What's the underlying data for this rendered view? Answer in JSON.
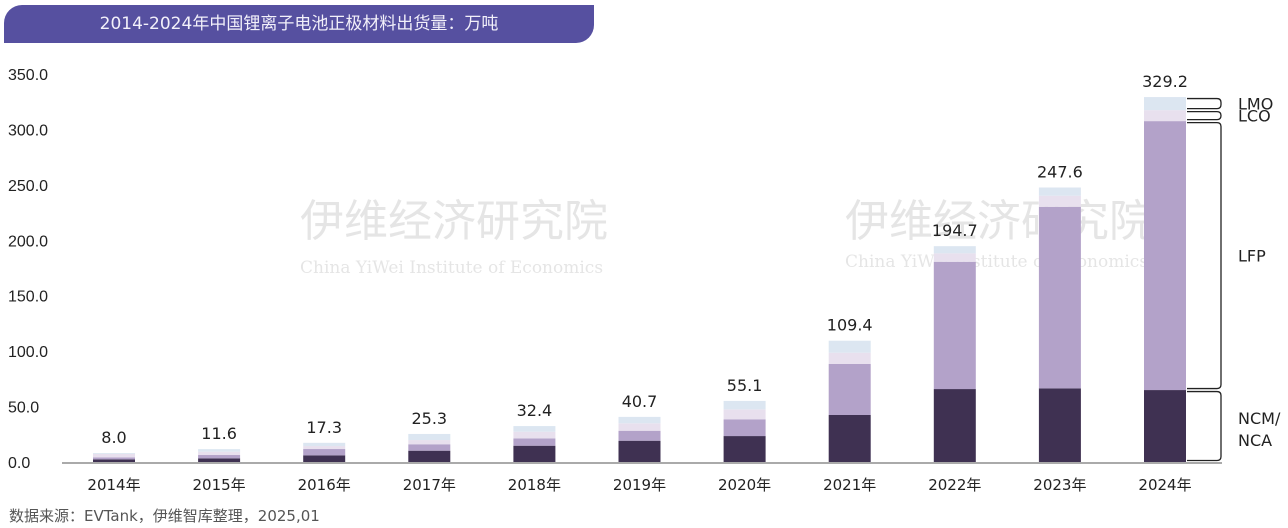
{
  "title": "2014-2024年中国锂离子电池正极材料出货量：万吨",
  "source": "数据来源：EVTank，伊维智库整理，2025,01",
  "watermark": {
    "cn": "伊维经济研究院",
    "en": "China YiWei Institute of Economics",
    "brand": "伊维智库"
  },
  "chart_data": {
    "type": "bar",
    "stacked": true,
    "title": "2014-2024年中国锂离子电池正极材料出货量：万吨",
    "categories": [
      "2014年",
      "2015年",
      "2016年",
      "2017年",
      "2018年",
      "2019年",
      "2020年",
      "2021年",
      "2022年",
      "2023年",
      "2024年"
    ],
    "totals": [
      8.0,
      11.6,
      17.3,
      25.3,
      32.4,
      40.7,
      55.1,
      109.4,
      194.7,
      247.6,
      329.2
    ],
    "total_labels": [
      "8.0",
      "11.6",
      "17.3",
      "25.3",
      "32.4",
      "40.7",
      "55.1",
      "109.4",
      "194.7",
      "247.6",
      "329.2"
    ],
    "series": [
      {
        "name": "NCM/NCA",
        "color": "#3f3152",
        "values": [
          2.4,
          3.3,
          6.0,
          10.2,
          14.7,
          19.2,
          23.4,
          42.4,
          65.8,
          66.4,
          64.9
        ]
      },
      {
        "name": "LFP",
        "color": "#b3a2c9",
        "values": [
          1.8,
          3.0,
          5.7,
          5.8,
          6.6,
          9.0,
          15.1,
          46.0,
          114.8,
          163.8,
          242.6
        ]
      },
      {
        "name": "LCO",
        "color": "#e8e0ee",
        "values": [
          3.0,
          3.0,
          2.7,
          3.8,
          6.0,
          6.7,
          9.0,
          10.2,
          7.6,
          10.0,
          9.9
        ]
      },
      {
        "name": "LMO",
        "color": "#dce6f1",
        "values": [
          0.8,
          2.3,
          2.9,
          5.5,
          5.1,
          5.8,
          7.6,
          10.8,
          6.5,
          7.4,
          11.8
        ]
      }
    ],
    "yticks": [
      "0.0",
      "50.0",
      "100.0",
      "150.0",
      "200.0",
      "250.0",
      "300.0",
      "350.0"
    ],
    "ylim": [
      0,
      350
    ],
    "grid": false,
    "legend": "right-brackets",
    "xlabel": "",
    "ylabel": ""
  }
}
